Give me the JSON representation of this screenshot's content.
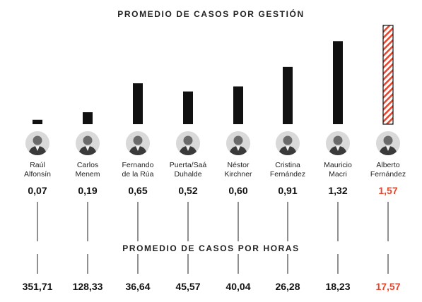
{
  "chart_data": {
    "type": "bar",
    "title": "PROMEDIO DE CASOS POR GESTIÓN",
    "secondary_title": "PROMEDIO DE CASOS POR HORAS",
    "categories": [
      [
        "Raúl",
        "Alfonsín"
      ],
      [
        "Carlos",
        "Menem"
      ],
      [
        "Fernando",
        "de la Rúa"
      ],
      [
        "Puerta/Saá",
        "Duhalde"
      ],
      [
        "Néstor",
        "Kirchner"
      ],
      [
        "Cristina",
        "Fernández"
      ],
      [
        "Mauricio",
        "Macri"
      ],
      [
        "Alberto",
        "Fernández"
      ]
    ],
    "values": [
      0.07,
      0.19,
      0.65,
      0.52,
      0.6,
      0.91,
      1.32,
      1.57
    ],
    "value_labels": [
      "0,07",
      "0,19",
      "0,65",
      "0,52",
      "0,60",
      "0,91",
      "1,32",
      "1,57"
    ],
    "hours_labels": [
      "351,71",
      "128,33",
      "36,64",
      "45,57",
      "40,04",
      "26,28",
      "18,23",
      "17,57"
    ],
    "highlight_index": 7,
    "ylim": [
      0,
      1.57
    ],
    "colors": {
      "bar": "#111111",
      "highlight": "#e5452d"
    }
  }
}
